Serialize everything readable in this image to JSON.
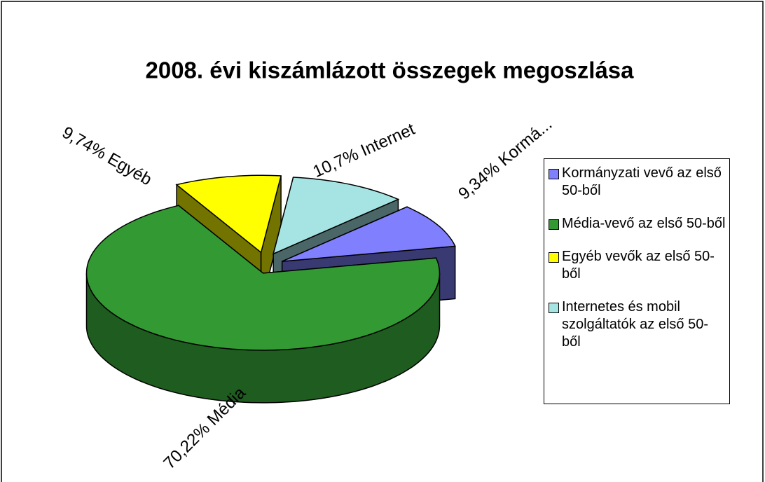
{
  "chart_data": {
    "type": "pie",
    "title": "2008. évi kiszámlázott összegek megoszlása",
    "categories": [
      "Kormányzati vevő az első 50-ből",
      "Média-vevő az első 50-ből",
      "Egyéb vevők az első 50-ből",
      "Internetes és mobil szolgáltatók az első 50-ből"
    ],
    "values": [
      9.34,
      70.22,
      9.74,
      10.7
    ],
    "value_labels": [
      "9,34% Kormá...",
      "70,22% Média",
      "9,74% Egyéb",
      "10,7% Internet"
    ],
    "colors": [
      "#8080ff",
      "#339933",
      "#ffff00",
      "#a6e3e3"
    ],
    "legend": "right",
    "three_d": true
  }
}
